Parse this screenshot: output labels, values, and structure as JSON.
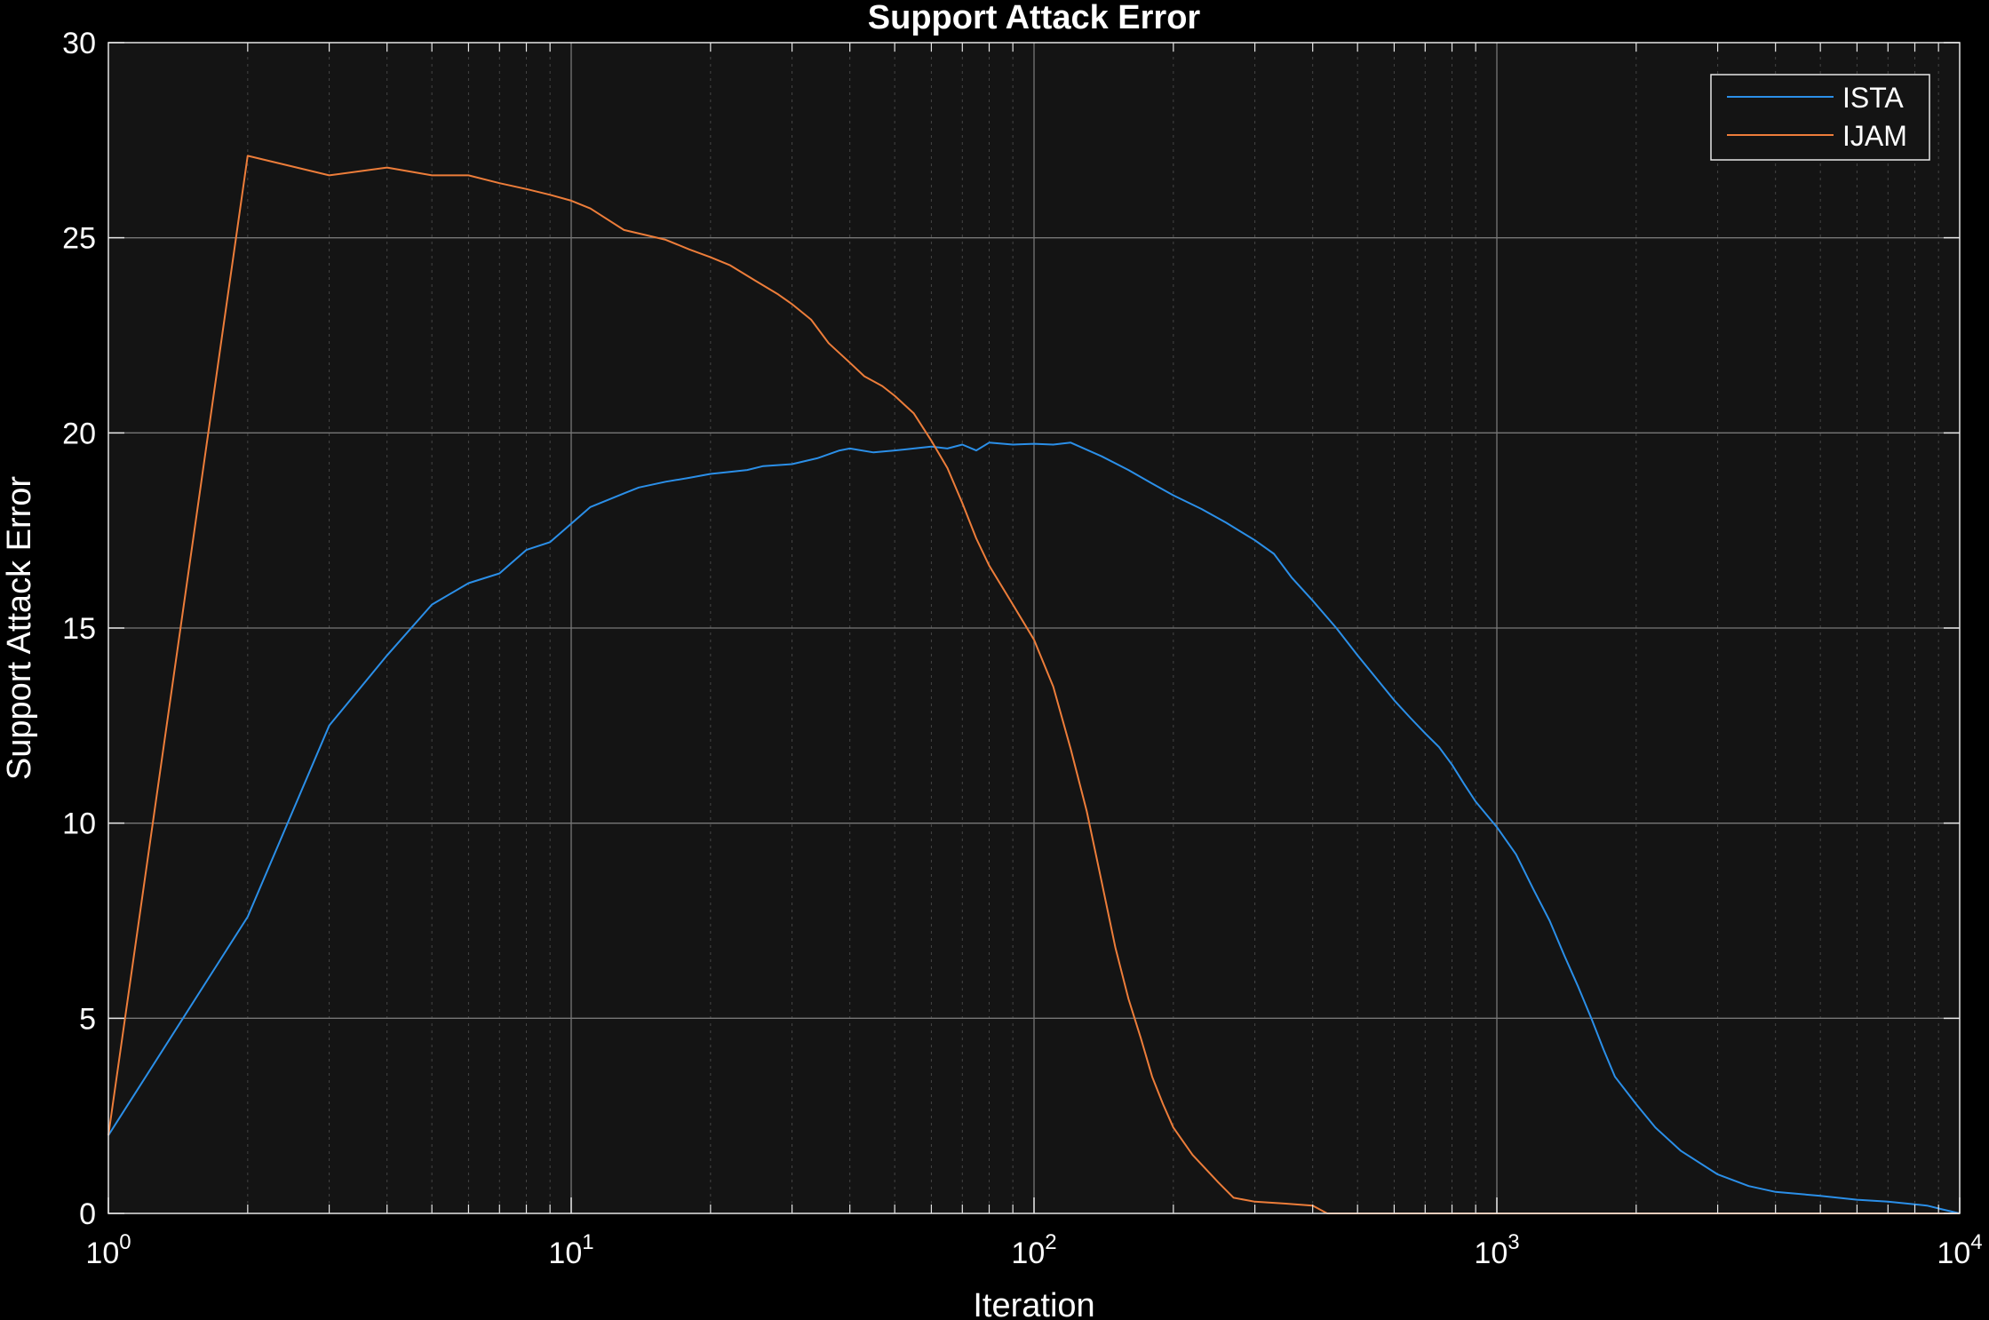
{
  "chart_data": {
    "type": "line",
    "title": "Support Attack Error",
    "xlabel": "Iteration",
    "ylabel": "Support Attack Error",
    "xscale": "log",
    "xlim": [
      1,
      10000
    ],
    "ylim": [
      0,
      30
    ],
    "x_ticks": [
      {
        "base": "10",
        "exp": "0",
        "value": 1
      },
      {
        "base": "10",
        "exp": "1",
        "value": 10
      },
      {
        "base": "10",
        "exp": "2",
        "value": 100
      },
      {
        "base": "10",
        "exp": "3",
        "value": 1000
      },
      {
        "base": "10",
        "exp": "4",
        "value": 10000
      }
    ],
    "y_ticks": [
      "0",
      "5",
      "10",
      "15",
      "20",
      "25",
      "30"
    ],
    "grid": true,
    "minor_grid": true,
    "legend_position": "top-right",
    "colors": {
      "background": "#000000",
      "plot_area": "#141414",
      "axes": "#e6e6e6",
      "grid": "#5a5a5a",
      "text": "#ffffff"
    },
    "series": [
      {
        "name": "ISTA",
        "color": "#2b8fe8",
        "points": [
          [
            1,
            2.0
          ],
          [
            2,
            7.6
          ],
          [
            3,
            12.5
          ],
          [
            4,
            14.3
          ],
          [
            5,
            15.6
          ],
          [
            6,
            16.15
          ],
          [
            7,
            16.4
          ],
          [
            8,
            17.0
          ],
          [
            9,
            17.2
          ],
          [
            11,
            18.1
          ],
          [
            13,
            18.45
          ],
          [
            14,
            18.6
          ],
          [
            16,
            18.75
          ],
          [
            18,
            18.85
          ],
          [
            20,
            18.95
          ],
          [
            22,
            19.0
          ],
          [
            24,
            19.05
          ],
          [
            26,
            19.15
          ],
          [
            30,
            19.2
          ],
          [
            34,
            19.35
          ],
          [
            38,
            19.55
          ],
          [
            40,
            19.6
          ],
          [
            45,
            19.5
          ],
          [
            50,
            19.55
          ],
          [
            55,
            19.6
          ],
          [
            60,
            19.65
          ],
          [
            65,
            19.6
          ],
          [
            70,
            19.7
          ],
          [
            75,
            19.55
          ],
          [
            80,
            19.75
          ],
          [
            90,
            19.7
          ],
          [
            100,
            19.72
          ],
          [
            110,
            19.7
          ],
          [
            120,
            19.75
          ],
          [
            140,
            19.4
          ],
          [
            160,
            19.05
          ],
          [
            180,
            18.7
          ],
          [
            200,
            18.4
          ],
          [
            230,
            18.05
          ],
          [
            260,
            17.7
          ],
          [
            300,
            17.25
          ],
          [
            330,
            16.9
          ],
          [
            360,
            16.3
          ],
          [
            400,
            15.7
          ],
          [
            450,
            15.0
          ],
          [
            500,
            14.3
          ],
          [
            550,
            13.7
          ],
          [
            600,
            13.15
          ],
          [
            650,
            12.7
          ],
          [
            700,
            12.3
          ],
          [
            750,
            11.95
          ],
          [
            800,
            11.5
          ],
          [
            850,
            11.0
          ],
          [
            900,
            10.55
          ],
          [
            1000,
            9.9
          ],
          [
            1100,
            9.2
          ],
          [
            1200,
            8.3
          ],
          [
            1300,
            7.5
          ],
          [
            1400,
            6.6
          ],
          [
            1500,
            5.8
          ],
          [
            1600,
            5.0
          ],
          [
            1700,
            4.2
          ],
          [
            1800,
            3.5
          ],
          [
            2000,
            2.8
          ],
          [
            2200,
            2.2
          ],
          [
            2500,
            1.6
          ],
          [
            3000,
            1.0
          ],
          [
            3500,
            0.7
          ],
          [
            4000,
            0.55
          ],
          [
            5000,
            0.45
          ],
          [
            6000,
            0.35
          ],
          [
            7000,
            0.3
          ],
          [
            8500,
            0.2
          ],
          [
            9200,
            0.1
          ],
          [
            10000,
            0.0
          ]
        ]
      },
      {
        "name": "IJAM",
        "color": "#ed7d3a",
        "points": [
          [
            1,
            2.0
          ],
          [
            2,
            27.1
          ],
          [
            3,
            26.6
          ],
          [
            4,
            26.8
          ],
          [
            5,
            26.6
          ],
          [
            6,
            26.6
          ],
          [
            7,
            26.4
          ],
          [
            8,
            26.25
          ],
          [
            9,
            26.1
          ],
          [
            10,
            25.95
          ],
          [
            11,
            25.75
          ],
          [
            13,
            25.2
          ],
          [
            16,
            24.95
          ],
          [
            18,
            24.7
          ],
          [
            20,
            24.5
          ],
          [
            22,
            24.3
          ],
          [
            25,
            23.9
          ],
          [
            28,
            23.55
          ],
          [
            30,
            23.3
          ],
          [
            33,
            22.9
          ],
          [
            36,
            22.3
          ],
          [
            40,
            21.8
          ],
          [
            43,
            21.45
          ],
          [
            47,
            21.2
          ],
          [
            50,
            20.95
          ],
          [
            55,
            20.5
          ],
          [
            60,
            19.8
          ],
          [
            65,
            19.1
          ],
          [
            70,
            18.2
          ],
          [
            75,
            17.3
          ],
          [
            80,
            16.6
          ],
          [
            90,
            15.6
          ],
          [
            100,
            14.7
          ],
          [
            110,
            13.5
          ],
          [
            120,
            11.9
          ],
          [
            130,
            10.3
          ],
          [
            140,
            8.5
          ],
          [
            150,
            6.8
          ],
          [
            160,
            5.5
          ],
          [
            170,
            4.5
          ],
          [
            180,
            3.5
          ],
          [
            190,
            2.8
          ],
          [
            200,
            2.2
          ],
          [
            220,
            1.5
          ],
          [
            250,
            0.8
          ],
          [
            270,
            0.4
          ],
          [
            300,
            0.3
          ],
          [
            350,
            0.25
          ],
          [
            400,
            0.2
          ],
          [
            430,
            0.0
          ],
          [
            10000,
            0.0
          ]
        ]
      }
    ]
  }
}
